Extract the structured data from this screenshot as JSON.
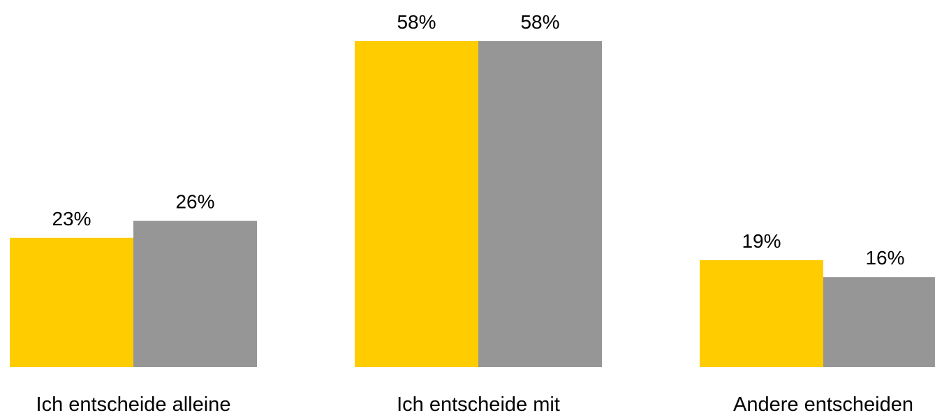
{
  "chart_data": {
    "type": "bar",
    "title": "",
    "xlabel": "",
    "ylabel": "",
    "categories": [
      "Ich entscheide alleine",
      "Ich entscheide mit",
      "Andere entscheiden"
    ],
    "series": [
      {
        "values": [
          23,
          58,
          19
        ],
        "labels": [
          "23%",
          "58%",
          "19%"
        ],
        "color": "#FFCC00"
      },
      {
        "values": [
          26,
          58,
          16
        ],
        "labels": [
          "26%",
          "58%",
          "16%"
        ],
        "color": "#969696"
      }
    ],
    "ylim": [
      0,
      58
    ],
    "value_unit": "%",
    "grid": false,
    "legend": "none"
  }
}
